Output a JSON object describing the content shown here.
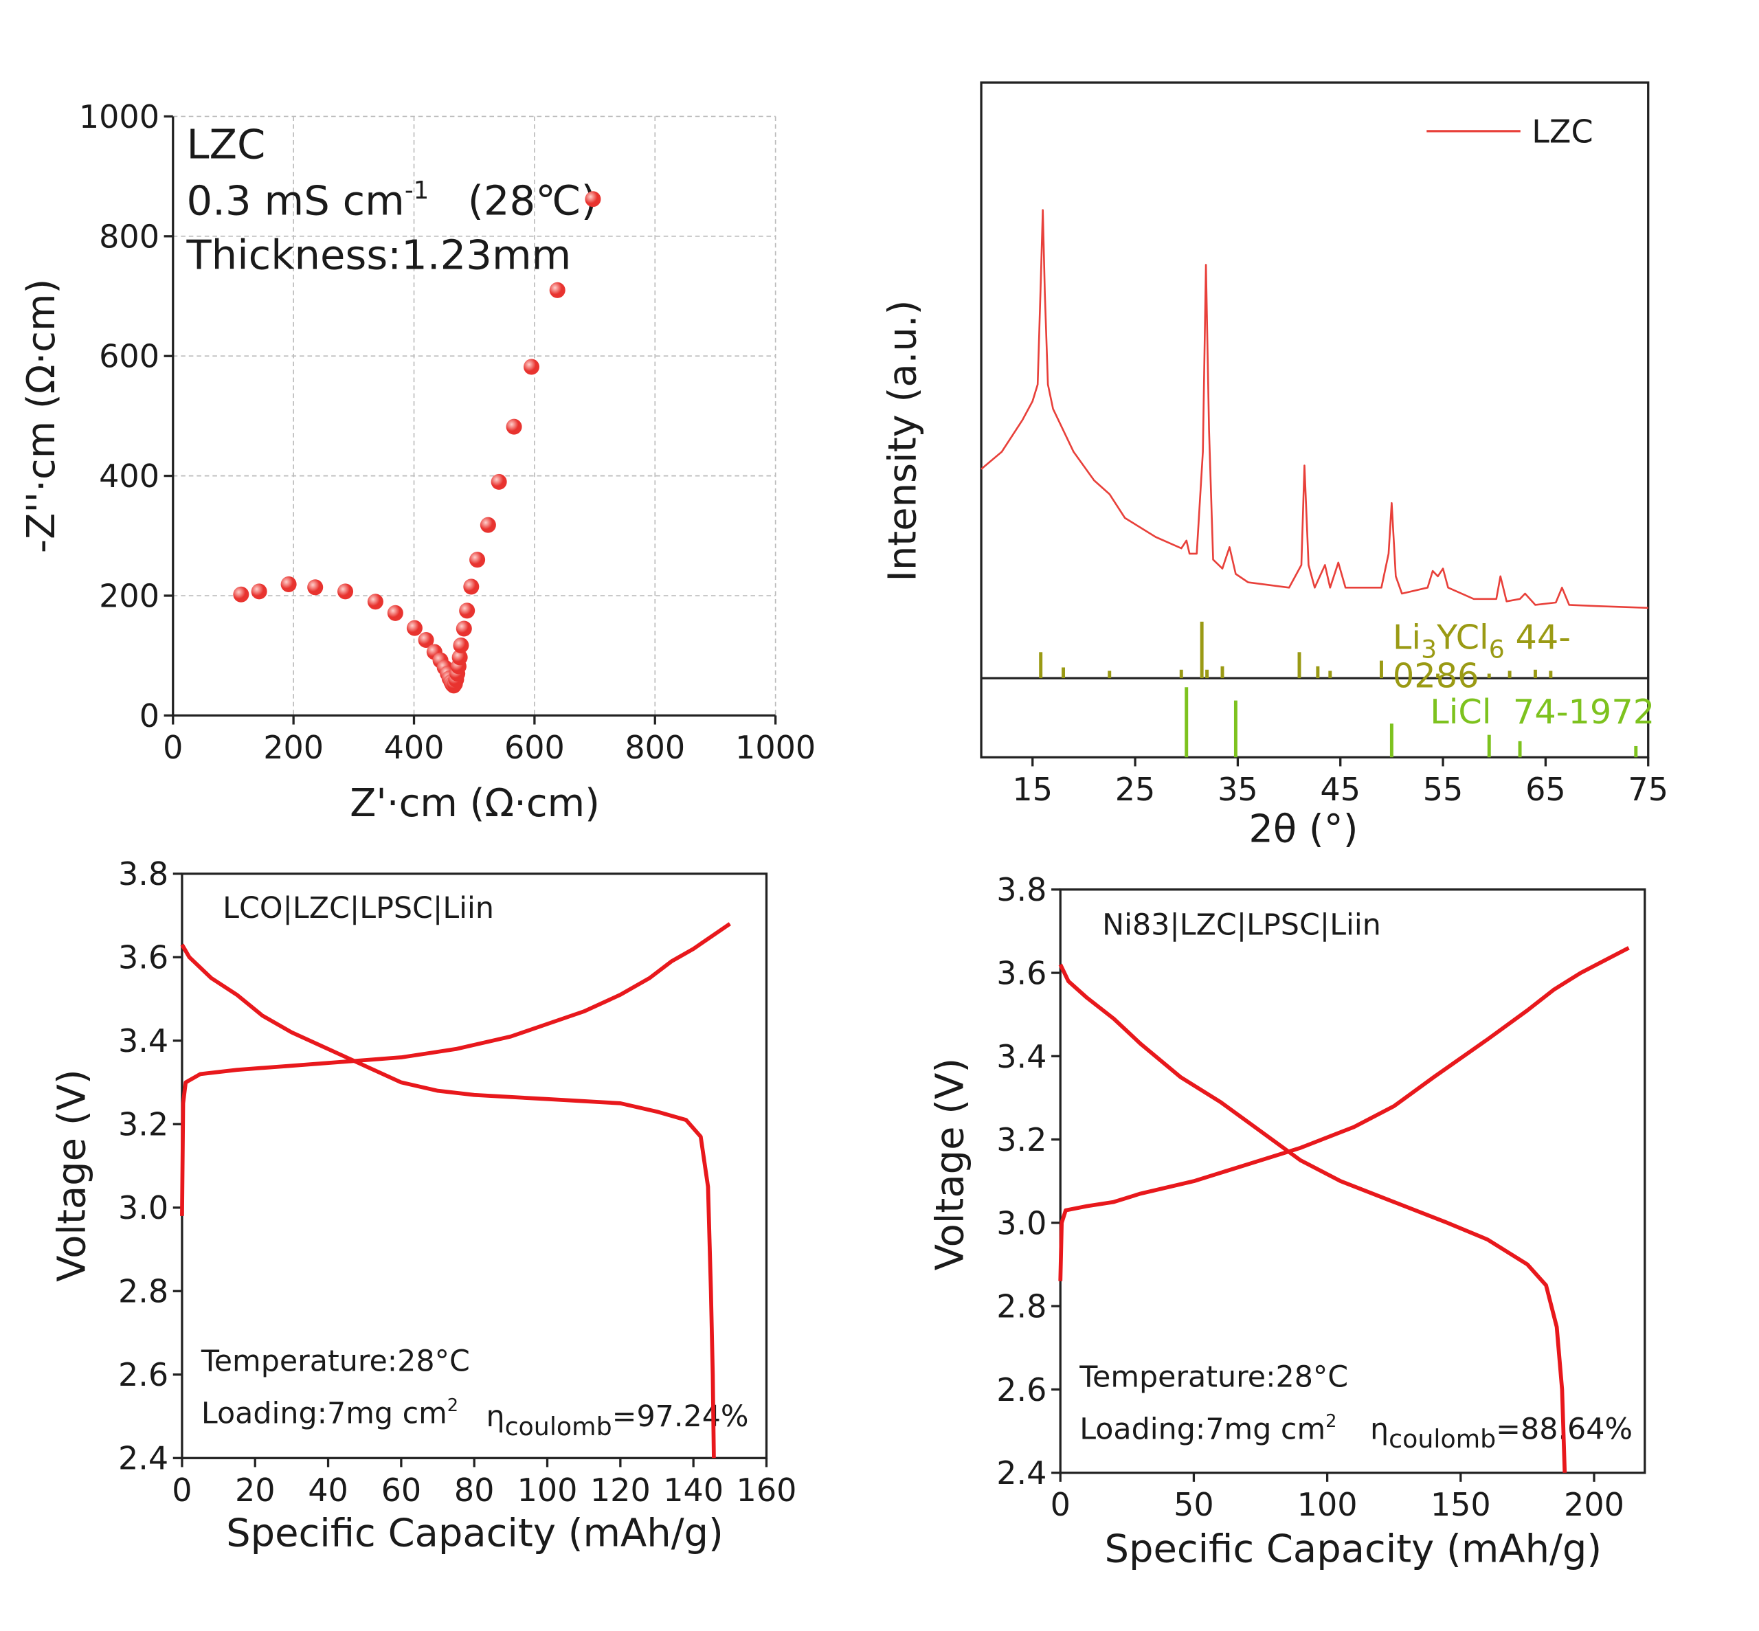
{
  "chart_data": [
    {
      "type": "scatter",
      "x_label": "Z'·cm (Ω·cm)",
      "y_label": "-Z''·cm (Ω·cm)",
      "xlim": [
        0,
        1000
      ],
      "ylim": [
        0,
        1000
      ],
      "xticks": [
        0,
        200,
        400,
        600,
        800,
        1000
      ],
      "yticks": [
        0,
        200,
        400,
        600,
        800,
        1000
      ],
      "grid": true,
      "color": "#e8332f",
      "annotations": [
        "LZC",
        {
          "text": "0.3 mS cm",
          "sup": "-1",
          "tail": "   (28℃)"
        },
        "Thickness:1.23mm"
      ],
      "x": [
        113,
        143,
        192,
        236,
        286,
        336,
        369,
        401,
        420,
        434,
        444,
        451,
        456,
        459,
        462,
        464,
        466,
        468,
        470,
        472,
        474,
        476,
        478,
        483,
        488,
        495,
        505,
        523,
        541,
        566,
        595,
        638,
        697
      ],
      "values": [
        202,
        207,
        219,
        214,
        207,
        190,
        171,
        146,
        126,
        106,
        92,
        80,
        70,
        62,
        56,
        52,
        50,
        53,
        60,
        70,
        82,
        97,
        117,
        145,
        175,
        215,
        260,
        318,
        390,
        482,
        582,
        710,
        862
      ]
    },
    {
      "type": "line",
      "x_label": "2θ (°)",
      "y_label": "Intensity (a.u.)",
      "xlim": [
        10,
        75
      ],
      "ylim": [
        0,
        100
      ],
      "xticks": [
        15,
        25,
        35,
        45,
        55,
        65,
        75
      ],
      "legend": "upper right",
      "series": [
        {
          "name": "LZC",
          "color": "#e8403a",
          "x": [
            10,
            12,
            14,
            15,
            15.5,
            15.8,
            16,
            16.2,
            16.5,
            17,
            19,
            21,
            22.5,
            24,
            27,
            29.5,
            30,
            30.3,
            31,
            31.6,
            31.9,
            32.2,
            32.6,
            33.5,
            34.2,
            34.8,
            36,
            40,
            41.2,
            41.5,
            41.9,
            42.5,
            43.5,
            44,
            44.8,
            45.5,
            49,
            49.7,
            50,
            50.4,
            51,
            53.5,
            54,
            54.5,
            55,
            55.5,
            58,
            60.2,
            60.6,
            61.2,
            62.5,
            63,
            64,
            66,
            66.6,
            67.3,
            70,
            75
          ],
          "values": [
            35.1,
            38,
            43.3,
            46.5,
            49.3,
            66.4,
            78.6,
            64.5,
            49.3,
            45.2,
            38,
            33.2,
            30.9,
            26.9,
            23.7,
            21.8,
            23.1,
            20.9,
            20.9,
            38,
            69.4,
            41.7,
            19.9,
            18.4,
            22,
            17.5,
            16.1,
            15.2,
            19,
            35.7,
            19,
            15.2,
            19,
            15.2,
            19.4,
            15.2,
            15.2,
            20.9,
            29.4,
            17.1,
            14.2,
            15.2,
            18,
            17.1,
            18.4,
            15.2,
            13.3,
            13.3,
            17.1,
            12.9,
            13.3,
            14.2,
            12.3,
            12.7,
            15.2,
            12.3,
            12.1,
            11.8
          ]
        }
      ],
      "references": [
        {
          "label_parts": [
            {
              "text": "Li"
            },
            {
              "sub": "3"
            },
            {
              "text": "YCl"
            },
            {
              "sub": "6"
            },
            {
              "text": " 44-"
            },
            {
              "text": "0286"
            }
          ],
          "color": "#9a9a14",
          "ylim": [
            0,
            100
          ],
          "positions": [
            15.8,
            18,
            22.5,
            29.5,
            31.5,
            32,
            33.5,
            41,
            42.8,
            44,
            49,
            54.5,
            59.5,
            61.5,
            64,
            65.5
          ],
          "intensities": [
            46,
            19,
            13,
            15,
            100,
            15,
            21,
            46,
            21,
            13,
            31,
            8,
            8,
            13,
            15,
            13
          ]
        },
        {
          "label_parts": [
            {
              "text": "LiCl  74-1972"
            }
          ],
          "color": "#7dc21e",
          "ylim": [
            0,
            100
          ],
          "positions": [
            30,
            34.8,
            50,
            59.5,
            62.5,
            73.8
          ],
          "intensities": [
            100,
            81,
            48,
            32,
            23,
            16
          ]
        }
      ]
    },
    {
      "type": "line",
      "x_label": "Specific Capacity (mAh/g)",
      "y_label": "Voltage (V)",
      "xlim": [
        0,
        160
      ],
      "ylim": [
        2.4,
        3.8
      ],
      "xticks": [
        0,
        20,
        40,
        60,
        80,
        100,
        120,
        140,
        160
      ],
      "yticks": [
        2.4,
        2.6,
        2.8,
        {
          "value": 3,
          "label": "3.0"
        },
        3.2,
        3.4,
        3.6,
        3.8
      ],
      "annotations": [
        "LCO|LZC|LPSC|Liin",
        "Temperature:28°C",
        {
          "text": "Loading:7mg cm",
          "sup": "2"
        },
        {
          "text": "η",
          "sub": "coulomb",
          "tail": "=97.24%"
        }
      ],
      "series": [
        {
          "color": "#e8181c",
          "x": [
            0,
            0.3,
            1,
            5,
            15,
            30,
            45,
            60,
            75,
            90,
            100,
            110,
            120,
            128,
            134,
            140,
            150
          ],
          "values": [
            2.98,
            3.25,
            3.3,
            3.32,
            3.33,
            3.34,
            3.35,
            3.36,
            3.38,
            3.41,
            3.44,
            3.47,
            3.51,
            3.55,
            3.59,
            3.62,
            3.68
          ]
        },
        {
          "color": "#e8181c",
          "x": [
            0,
            2,
            8,
            15,
            22,
            30,
            40,
            50,
            60,
            70,
            80,
            100,
            120,
            130,
            138,
            142,
            144,
            144.8,
            145.3,
            145.6
          ],
          "values": [
            3.63,
            3.6,
            3.55,
            3.51,
            3.46,
            3.42,
            3.38,
            3.34,
            3.3,
            3.28,
            3.27,
            3.26,
            3.25,
            3.23,
            3.21,
            3.17,
            3.05,
            2.8,
            2.6,
            2.4
          ]
        }
      ]
    },
    {
      "type": "line",
      "x_label": "Specific Capacity (mAh/g)",
      "y_label": "Voltage (V)",
      "xlim": [
        0,
        219
      ],
      "ylim": [
        2.4,
        3.8
      ],
      "xticks": [
        0,
        50,
        100,
        150,
        200
      ],
      "yticks": [
        2.4,
        2.6,
        2.8,
        {
          "value": 3,
          "label": "3.0"
        },
        3.2,
        3.4,
        3.6,
        3.8
      ],
      "annotations": [
        "Ni83|LZC|LPSC|Liin",
        "Temperature:28°C",
        {
          "text": "Loading:7mg cm",
          "sup": "2"
        },
        {
          "text": "η",
          "sub": "coulomb",
          "tail": "=88.64%"
        }
      ],
      "series": [
        {
          "color": "#e8181c",
          "x": [
            0,
            0.5,
            2,
            10,
            20,
            30,
            50,
            70,
            90,
            110,
            125,
            140,
            160,
            175,
            185,
            195,
            213
          ],
          "values": [
            2.86,
            3,
            3.03,
            3.04,
            3.05,
            3.07,
            3.1,
            3.14,
            3.18,
            3.23,
            3.28,
            3.35,
            3.44,
            3.51,
            3.56,
            3.6,
            3.66
          ]
        },
        {
          "color": "#e8181c",
          "x": [
            0,
            3,
            10,
            20,
            30,
            45,
            60,
            75,
            90,
            105,
            125,
            145,
            160,
            175,
            182,
            186,
            188,
            189
          ],
          "values": [
            3.62,
            3.58,
            3.54,
            3.49,
            3.43,
            3.35,
            3.29,
            3.22,
            3.15,
            3.1,
            3.05,
            3,
            2.96,
            2.9,
            2.85,
            2.75,
            2.6,
            2.4
          ]
        }
      ]
    }
  ]
}
